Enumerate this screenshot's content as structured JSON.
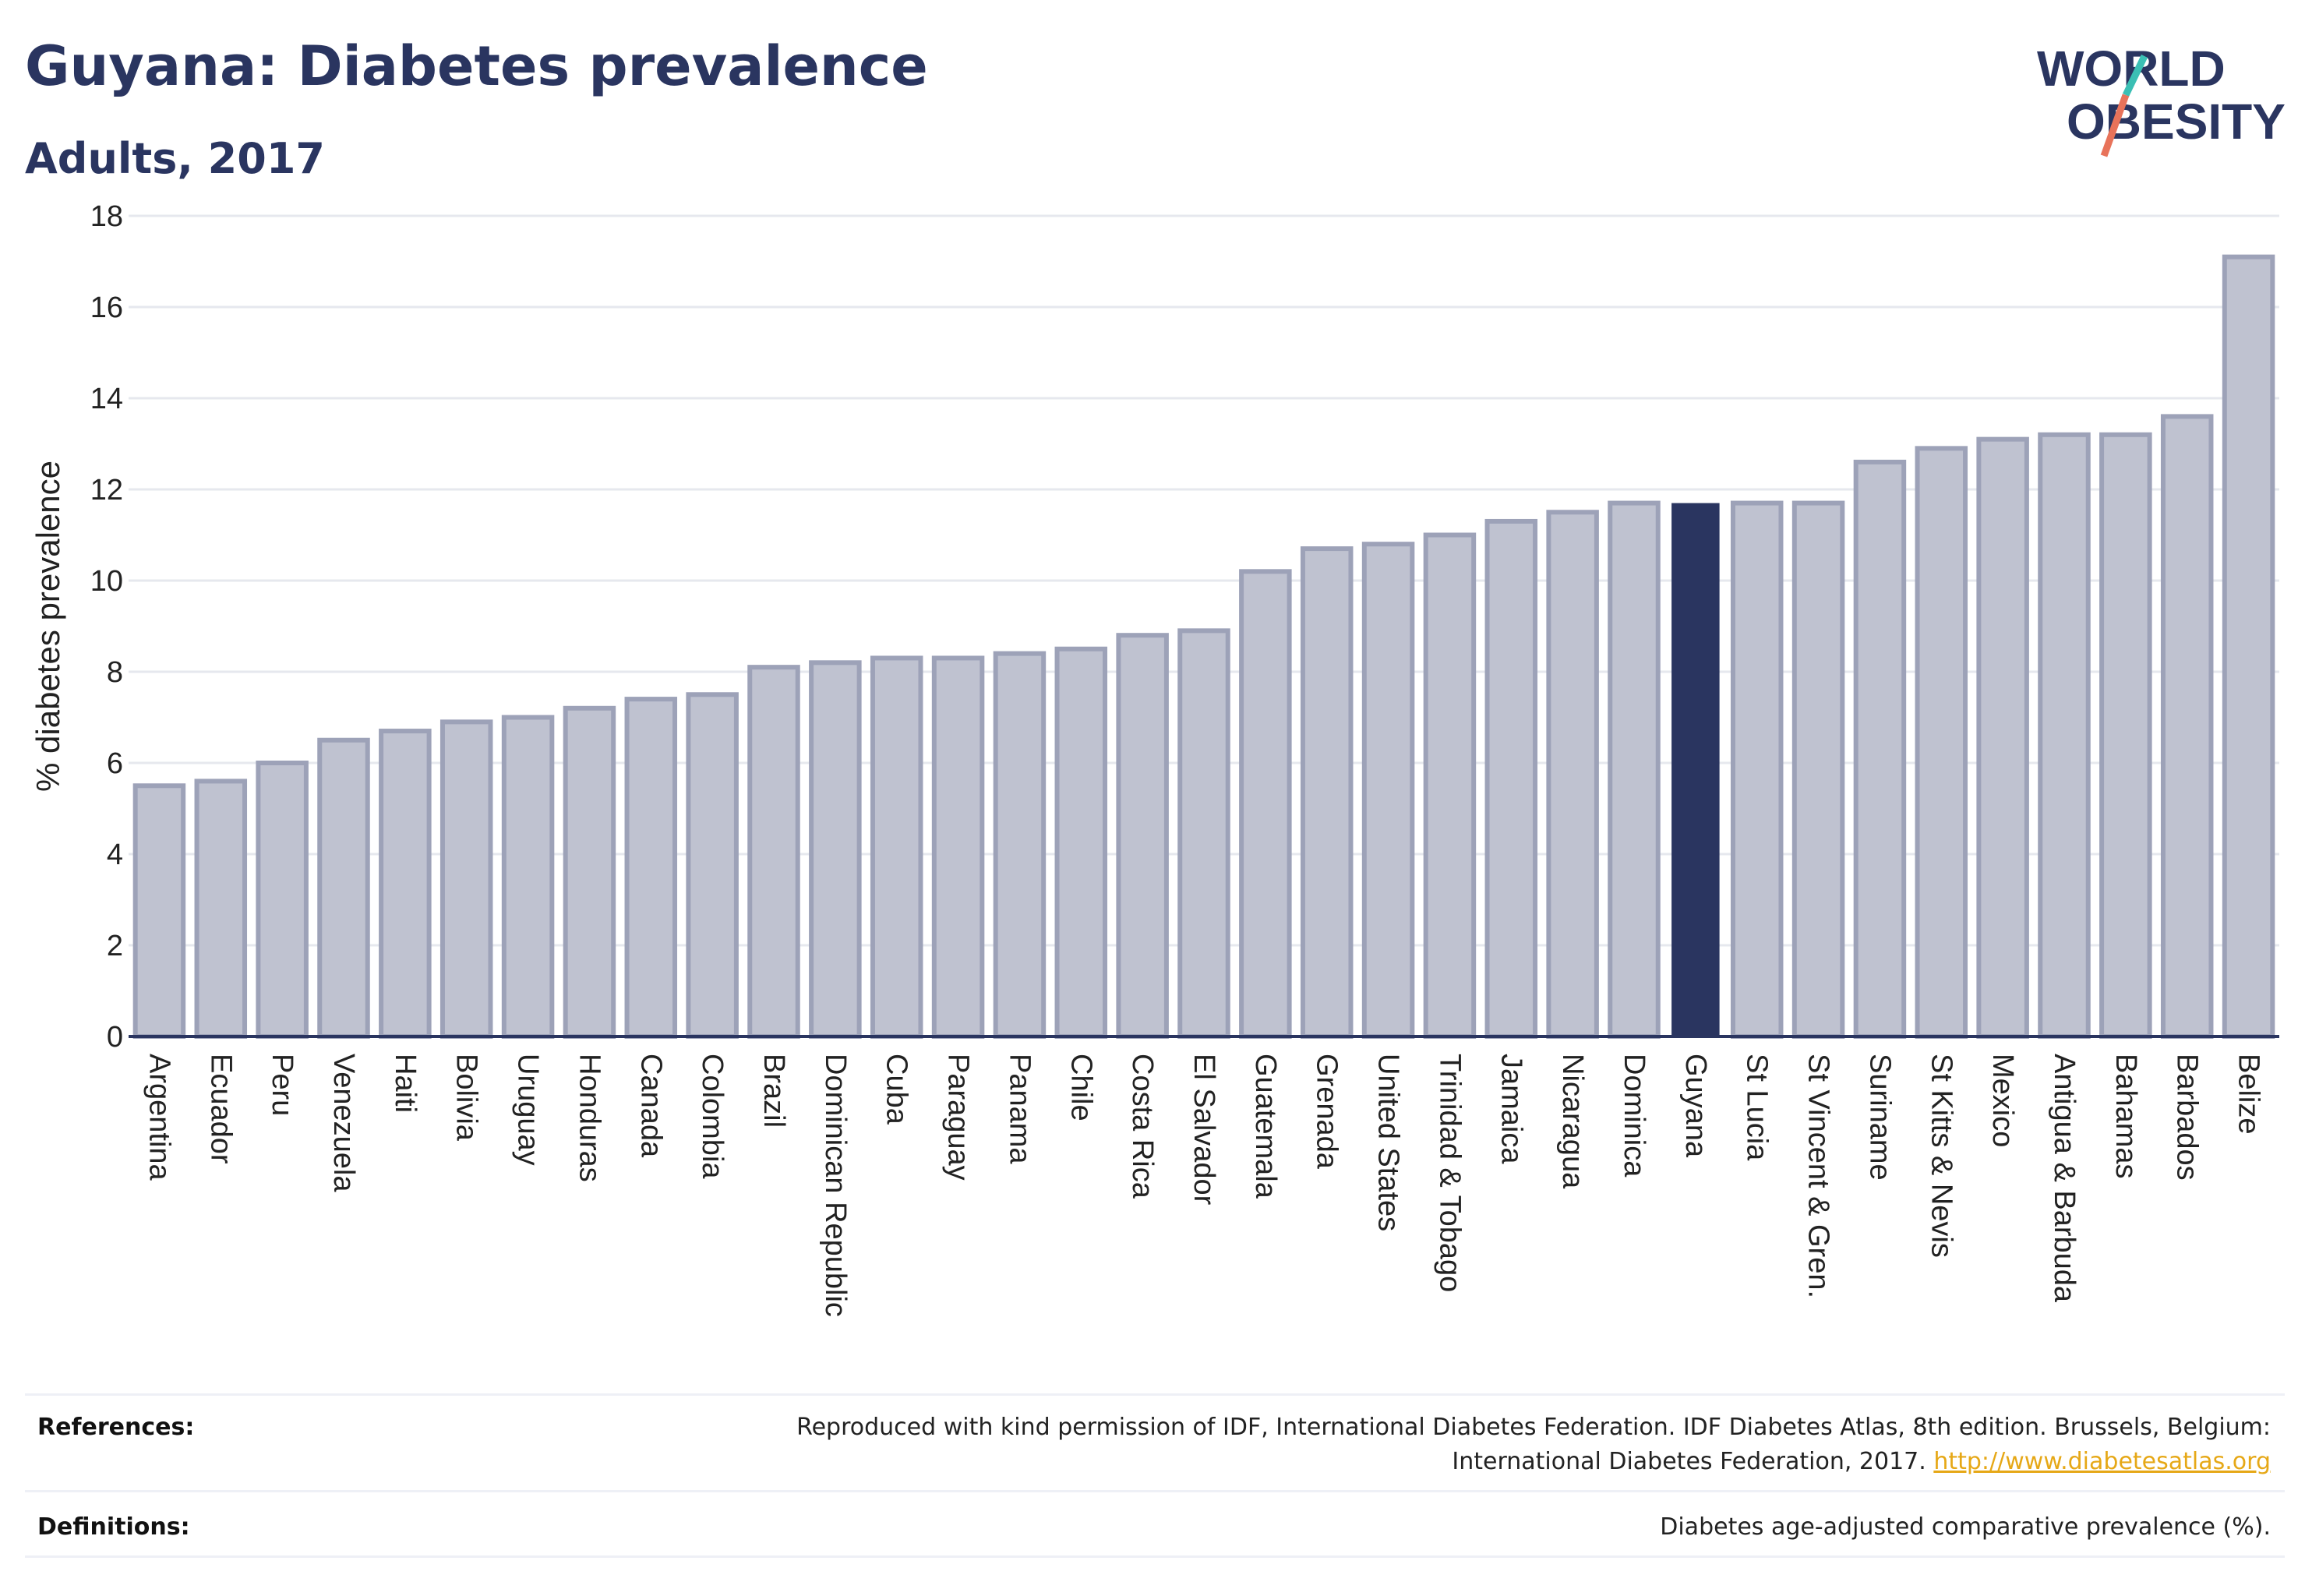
{
  "header": {
    "title": "Guyana: Diabetes prevalence",
    "subtitle": "Adults, 2017"
  },
  "logo": {
    "line1": "WORLD",
    "line2": "OBESITY",
    "slash_colors": [
      "#3bbfb4",
      "#e8735a"
    ]
  },
  "colors": {
    "bar_fill": "#bfc2d0",
    "bar_stroke": "#9da2b8",
    "highlight": "#2a3560",
    "grid": "#e6e8ee",
    "axis": "#2a3560"
  },
  "chart_data": {
    "type": "bar",
    "title": "Guyana: Diabetes prevalence",
    "subtitle": "Adults, 2017",
    "xlabel": "",
    "ylabel": "% diabetes prevalence",
    "ylim": [
      0,
      18
    ],
    "yticks": [
      0,
      2,
      4,
      6,
      8,
      10,
      12,
      14,
      16,
      18
    ],
    "grid": true,
    "highlight": "Guyana",
    "categories": [
      "Argentina",
      "Ecuador",
      "Peru",
      "Venezuela",
      "Haiti",
      "Bolivia",
      "Uruguay",
      "Honduras",
      "Canada",
      "Colombia",
      "Brazil",
      "Dominican Republic",
      "Cuba",
      "Paraguay",
      "Panama",
      "Chile",
      "Costa Rica",
      "El Salvador",
      "Guatemala",
      "Grenada",
      "United States",
      "Trinidad & Tobago",
      "Jamaica",
      "Nicaragua",
      "Dominica",
      "Guyana",
      "St Lucia",
      "St Vincent & Gren.",
      "Suriname",
      "St Kitts & Nevis",
      "Mexico",
      "Antigua & Barbuda",
      "Bahamas",
      "Barbados",
      "Belize"
    ],
    "values": [
      5.5,
      5.6,
      6.0,
      6.5,
      6.7,
      6.9,
      7.0,
      7.2,
      7.4,
      7.5,
      8.1,
      8.2,
      8.3,
      8.3,
      8.4,
      8.5,
      8.8,
      8.9,
      10.2,
      10.7,
      10.8,
      11.0,
      11.3,
      11.5,
      11.7,
      11.7,
      11.7,
      11.7,
      12.6,
      12.9,
      13.1,
      13.2,
      13.2,
      13.6,
      17.1
    ]
  },
  "footer": {
    "references_label": "References:",
    "references_text_1": "Reproduced with kind permission of IDF, International Diabetes Federation. IDF Diabetes Atlas, 8th edition. Brussels, Belgium:",
    "references_text_2": "International Diabetes Federation, 2017.",
    "references_link": "http://www.diabetesatlas.org",
    "definitions_label": "Definitions:",
    "definitions_text": "Diabetes age-adjusted comparative prevalence (%)."
  }
}
